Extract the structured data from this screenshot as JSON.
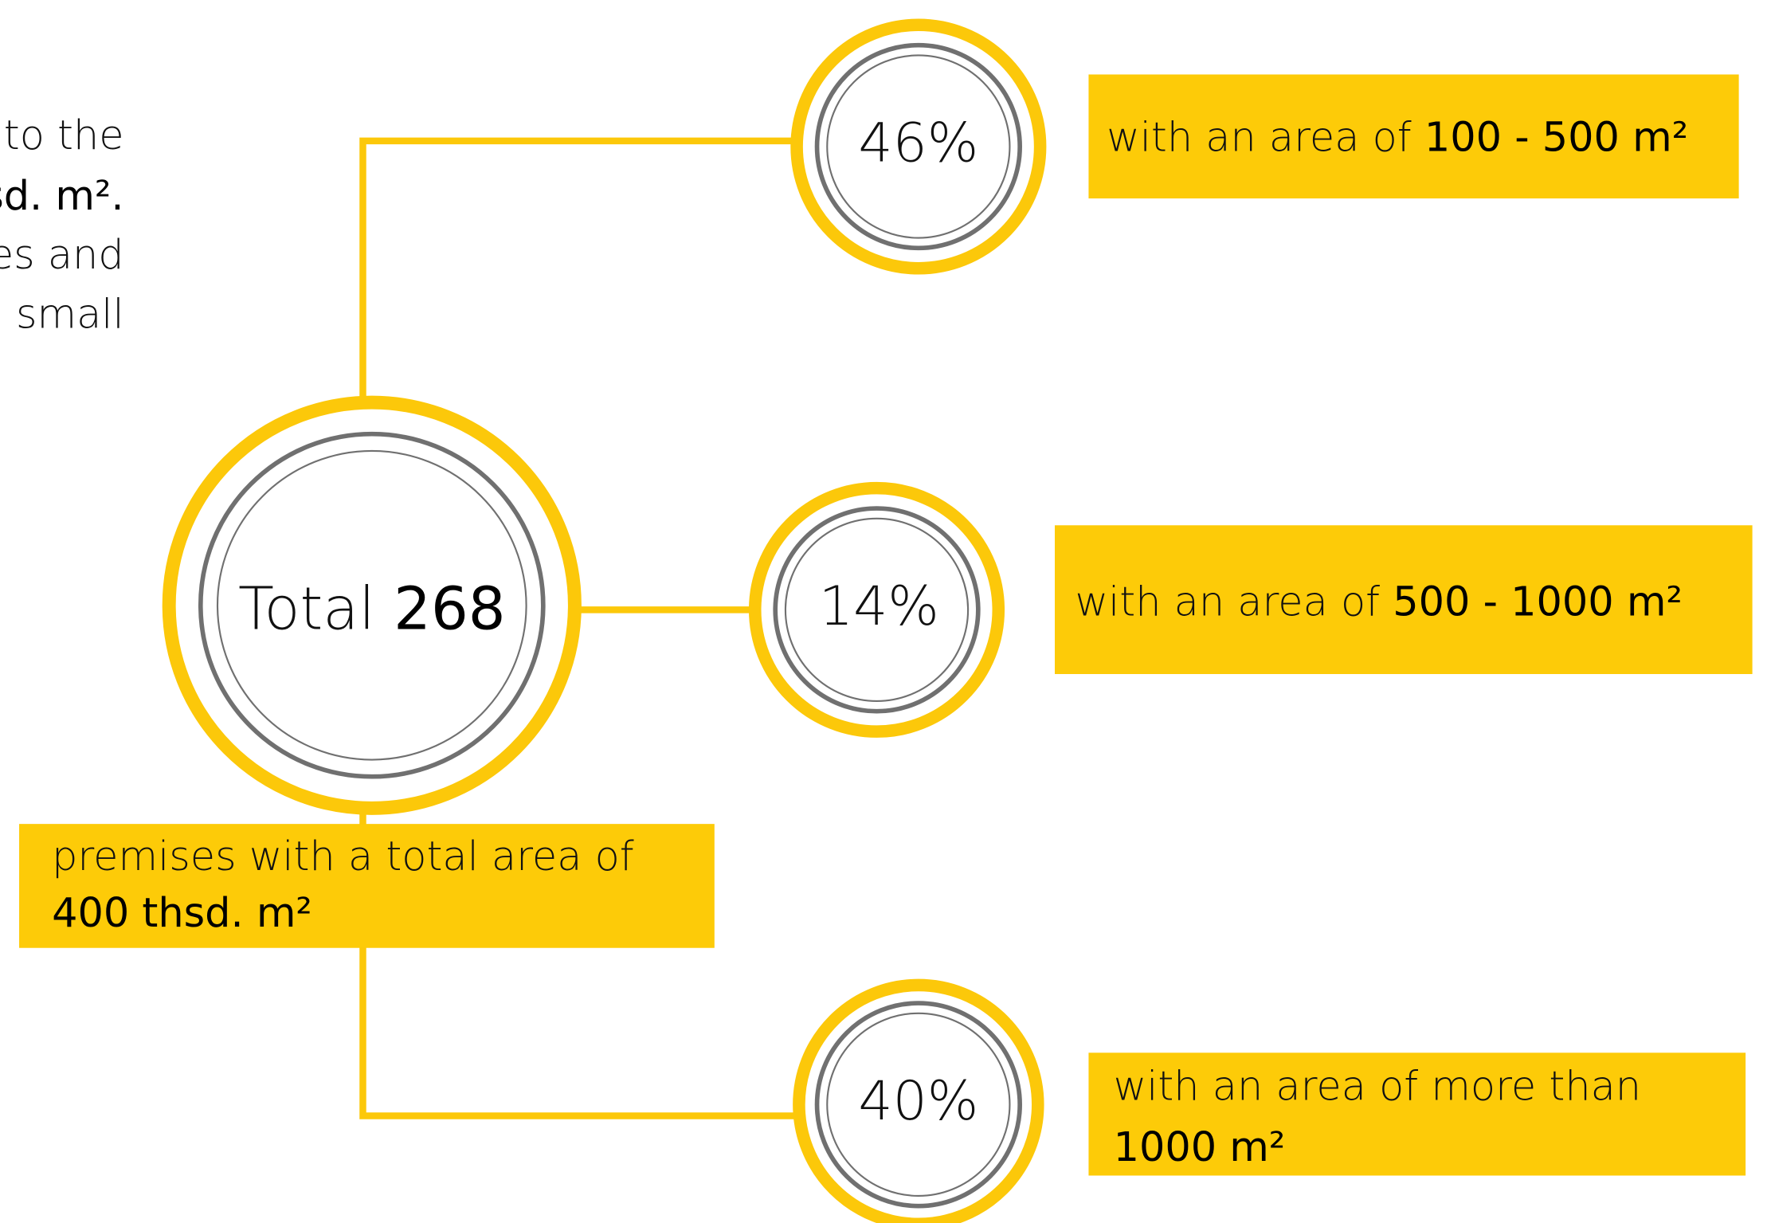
{
  "intro_lines": [
    "to the",
    "sd. m².",
    "es and",
    "small"
  ],
  "center": {
    "label": "Total",
    "value": "268"
  },
  "total_box": {
    "text": "premises with a total area of",
    "highlight": "400 thsd. m²"
  },
  "branches": [
    {
      "percent": "46%",
      "text": "with an area of",
      "highlight": "100 - 500 m²"
    },
    {
      "percent": "14%",
      "text": "with an area of",
      "highlight": "500 - 1000 m²"
    },
    {
      "percent": "40%",
      "text": "with an area of more than",
      "highlight": "1000 m²"
    }
  ]
}
